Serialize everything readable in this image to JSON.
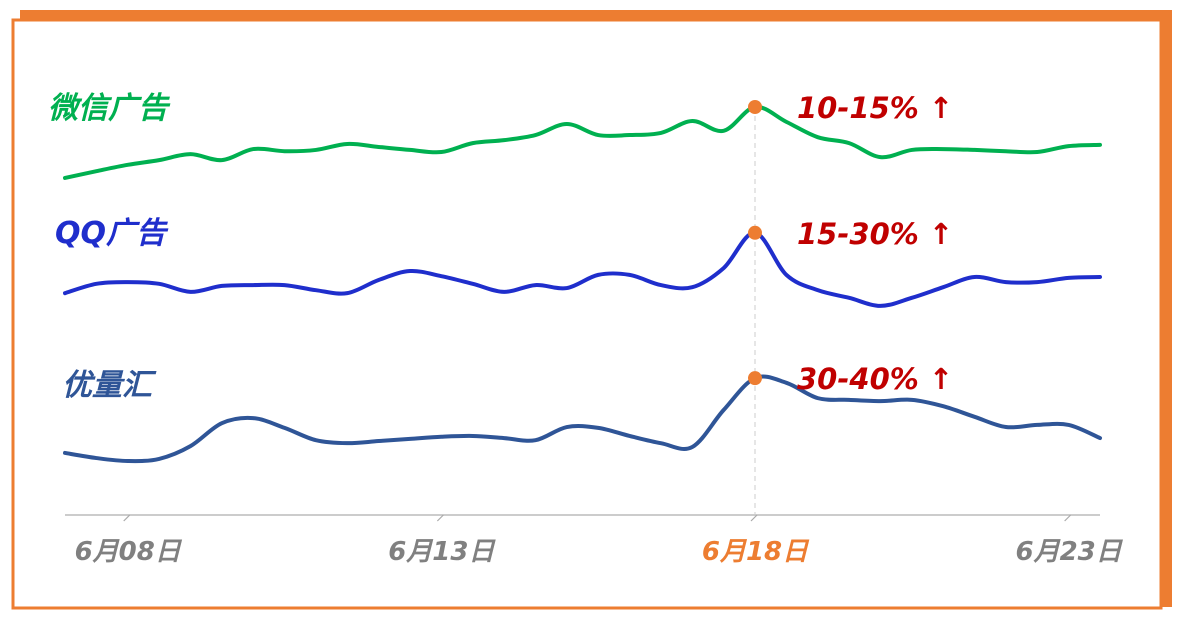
{
  "chart_data": {
    "type": "line",
    "categories": [
      null,
      null,
      "6月08日",
      null,
      null,
      null,
      null,
      null,
      null,
      null,
      null,
      null,
      "6月13日",
      null,
      null,
      null,
      null,
      null,
      null,
      null,
      null,
      null,
      "6月18日",
      null,
      null,
      null,
      null,
      null,
      null,
      null,
      null,
      null,
      "6月23日",
      null
    ],
    "ylim": [
      0,
      100
    ],
    "highlight_category_index": 22,
    "highlight_color": "#ed7d31",
    "series": [
      {
        "name": "微信广告",
        "color": "#00b050",
        "annotation": "10-15% ↑",
        "values": [
          79.3,
          80.9,
          82.4,
          83.5,
          84.9,
          83.5,
          86.1,
          85.6,
          85.9,
          87.3,
          86.6,
          85.9,
          85.4,
          87.5,
          88.2,
          89.4,
          92,
          89.4,
          89.4,
          89.9,
          92.7,
          90.4,
          96,
          92.5,
          88.9,
          87.5,
          84.2,
          85.9,
          86.1,
          85.9,
          85.6,
          85.4,
          86.8,
          87.1
        ]
      },
      {
        "name": "QQ广告",
        "color": "#1f2ecc",
        "annotation": "15-30% ↑",
        "values": [
          52.2,
          54.4,
          54.8,
          54.4,
          52.5,
          53.9,
          54.1,
          54.1,
          52.9,
          52.2,
          55.3,
          57.4,
          56.2,
          54.4,
          52.5,
          54.1,
          53.4,
          56.5,
          56.5,
          54.1,
          53.6,
          58.1,
          66.4,
          56.5,
          52.9,
          51.1,
          49.2,
          51.1,
          53.6,
          56,
          54.8,
          54.8,
          55.8,
          56
        ]
      },
      {
        "name": "优量汇",
        "color": "#2f5597",
        "annotation": "30-40% ↑",
        "values": [
          14.6,
          13.4,
          12.7,
          13.2,
          16.2,
          21.6,
          22.8,
          20.5,
          17.6,
          16.9,
          17.4,
          17.9,
          18.4,
          18.6,
          18.1,
          17.6,
          20.7,
          20.5,
          18.6,
          16.9,
          16,
          24.7,
          32.2,
          31.1,
          27.5,
          27.1,
          26.8,
          27.1,
          25.6,
          23.1,
          20.7,
          21.2,
          21.2,
          18.1
        ]
      }
    ]
  }
}
